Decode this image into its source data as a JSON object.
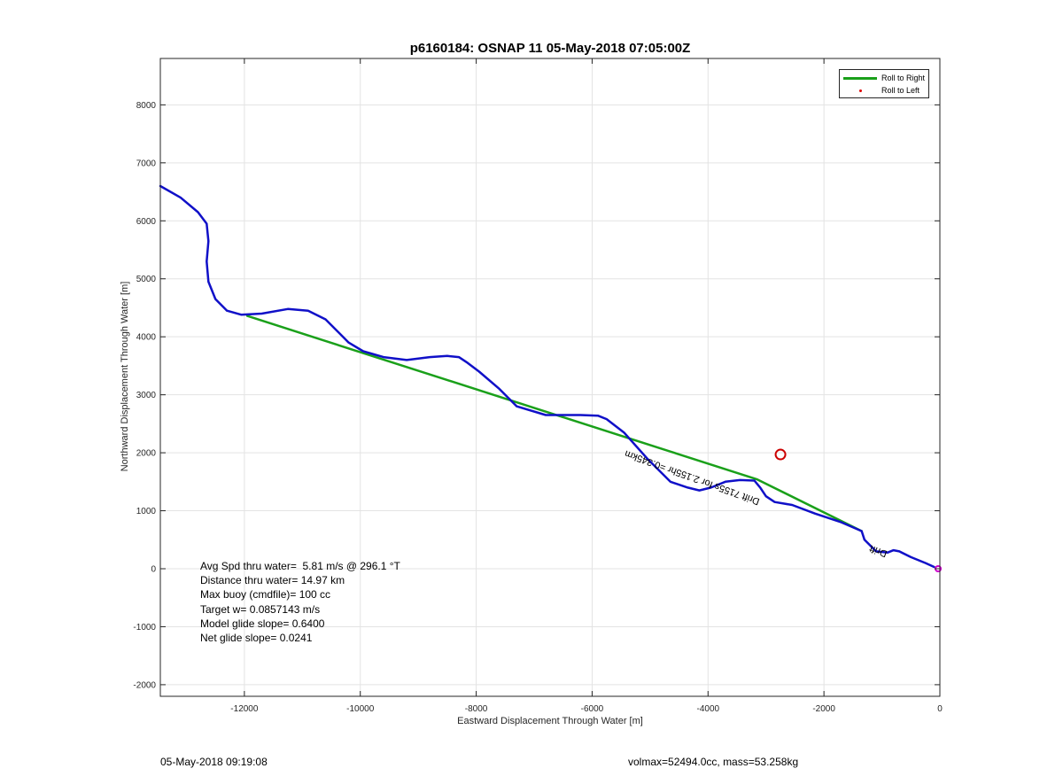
{
  "chart_data": {
    "type": "line",
    "title": "p6160184: OSNAP 11 05-May-2018 07:05:00Z",
    "xlabel": "Eastward Displacement Through Water [m]",
    "ylabel": "Northward Displacement Through Water [m]",
    "xlim": [
      -13450,
      0
    ],
    "ylim": [
      -2200,
      8800
    ],
    "xticks": [
      -12000,
      -10000,
      -8000,
      -6000,
      -4000,
      -2000,
      0
    ],
    "yticks": [
      -2000,
      -1000,
      0,
      1000,
      2000,
      3000,
      4000,
      5000,
      6000,
      7000,
      8000
    ],
    "grid": true,
    "legend_position": "top-right",
    "legend": [
      "Roll to Right",
      "Roll to Left"
    ],
    "series": [
      {
        "name": "Roll to Right",
        "color": "#1aa01a",
        "x": [
          -11950,
          -3150,
          -1350
        ],
        "y": [
          4360,
          1540,
          650
        ]
      },
      {
        "name": "",
        "color": "#1010c8",
        "x": [
          -13450,
          -13100,
          -12800,
          -12650,
          -12620,
          -12650,
          -12620,
          -12500,
          -12300,
          -12050,
          -11700,
          -11250,
          -10900,
          -10600,
          -10400,
          -10200,
          -9950,
          -9600,
          -9200,
          -8800,
          -8500,
          -8300,
          -8150,
          -7950,
          -7600,
          -7300,
          -6800,
          -6200,
          -5900,
          -5750,
          -5450,
          -5050,
          -4650,
          -4350,
          -4150,
          -3950,
          -3700,
          -3450,
          -3200,
          -3100,
          -3000,
          -2850,
          -2550,
          -2150,
          -1700,
          -1350,
          -1300,
          -1100,
          -900,
          -800,
          -700,
          -500,
          -250,
          -100
        ],
        "y": [
          6600,
          6400,
          6150,
          5950,
          5650,
          5300,
          4950,
          4650,
          4450,
          4380,
          4400,
          4480,
          4450,
          4300,
          4100,
          3900,
          3750,
          3650,
          3600,
          3650,
          3670,
          3650,
          3550,
          3400,
          3100,
          2800,
          2650,
          2650,
          2640,
          2580,
          2350,
          1900,
          1500,
          1400,
          1350,
          1400,
          1500,
          1530,
          1520,
          1400,
          1250,
          1150,
          1100,
          950,
          800,
          650,
          500,
          300,
          280,
          320,
          300,
          200,
          100,
          30
        ]
      }
    ],
    "markers": [
      {
        "shape": "circle",
        "color": "#cc0000",
        "x": -2750,
        "y": 1970
      },
      {
        "shape": "circle",
        "color": "#cc00cc",
        "x": -30,
        "y": 0
      }
    ],
    "annotations": [
      {
        "text": "Drift 7155s for 2.155hr =0.345km",
        "x": -3100,
        "y": 1200
      },
      {
        "text": "Drift",
        "x": -900,
        "y": 300
      }
    ]
  },
  "stats": {
    "avg_spd": "Avg Spd thru water=  5.81 m/s @ 296.1 °T",
    "distance": "Distance thru water= 14.97 km",
    "max_buoy": "Max buoy (cmdfile)= 100 cc",
    "target_w": "Target w= 0.0857143 m/s",
    "model_glide": "Model glide slope= 0.6400",
    "net_glide": "Net glide slope= 0.0241"
  },
  "footer": {
    "left": "05-May-2018 09:19:08",
    "right": "volmax=52494.0cc, mass=53.258kg"
  }
}
